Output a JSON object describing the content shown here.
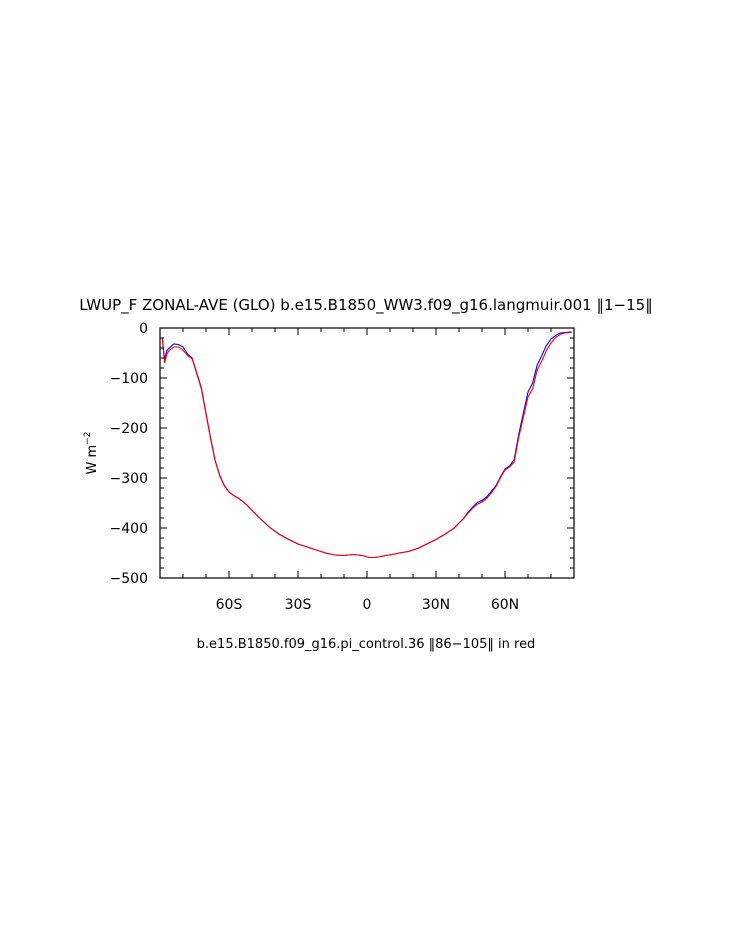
{
  "chart_data": {
    "type": "line",
    "title": "LWUP_F ZONAL-AVE (GLO) b.e15.B1850_WW3.f09_g16.langmuir.001 ‖1−15‖",
    "ylabel_base": "W m",
    "ylabel_exp": "−2",
    "xlabel": "",
    "subtitle": "b.e15.B1850.f09_g16.pi_control.36 ‖86−105‖ in red",
    "xlim": [
      -90,
      90
    ],
    "ylim": [
      -500,
      0
    ],
    "x_ticks": [
      {
        "value": -60,
        "label": "60S"
      },
      {
        "value": -30,
        "label": "30S"
      },
      {
        "value": 0,
        "label": "0"
      },
      {
        "value": 30,
        "label": "30N"
      },
      {
        "value": 60,
        "label": "60N"
      }
    ],
    "y_ticks": [
      {
        "value": 0,
        "label": "0"
      },
      {
        "value": -100,
        "label": "−100"
      },
      {
        "value": -200,
        "label": "−200"
      },
      {
        "value": -300,
        "label": "−300"
      },
      {
        "value": -400,
        "label": "−400"
      },
      {
        "value": -500,
        "label": "−500"
      }
    ],
    "series": [
      {
        "color": "#0000ff",
        "x": [
          -89,
          -88,
          -87,
          -86,
          -84,
          -82,
          -80,
          -78,
          -76,
          -74,
          -72,
          -70,
          -68,
          -66,
          -64,
          -62,
          -60,
          -58,
          -56,
          -54,
          -52,
          -50,
          -46,
          -42,
          -38,
          -34,
          -30,
          -26,
          -22,
          -18,
          -14,
          -10,
          -6,
          -2,
          1,
          3,
          5,
          8,
          11,
          14,
          18,
          22,
          26,
          30,
          34,
          38,
          40,
          42,
          44,
          46,
          48,
          50,
          52,
          54,
          56,
          58,
          60,
          62,
          64,
          66,
          68,
          70,
          72,
          74,
          76,
          78,
          80,
          82,
          84,
          86,
          88,
          89
        ],
        "y": [
          -20,
          -63,
          -45,
          -40,
          -32,
          -33,
          -38,
          -52,
          -60,
          -90,
          -120,
          -170,
          -220,
          -265,
          -295,
          -315,
          -328,
          -335,
          -340,
          -347,
          -355,
          -365,
          -383,
          -400,
          -413,
          -423,
          -432,
          -438,
          -444,
          -450,
          -454,
          -455,
          -453,
          -455,
          -459,
          -459,
          -458,
          -455,
          -453,
          -450,
          -447,
          -441,
          -432,
          -423,
          -412,
          -400,
          -390,
          -381,
          -368,
          -358,
          -349,
          -345,
          -338,
          -327,
          -316,
          -298,
          -282,
          -276,
          -263,
          -212,
          -170,
          -128,
          -110,
          -74,
          -55,
          -35,
          -22,
          -15,
          -10,
          -9,
          -8,
          -8
        ]
      },
      {
        "color": "#ff0000",
        "x": [
          -89,
          -88,
          -87,
          -86,
          -84,
          -82,
          -80,
          -78,
          -76,
          -74,
          -72,
          -70,
          -68,
          -66,
          -64,
          -62,
          -60,
          -58,
          -56,
          -54,
          -52,
          -50,
          -46,
          -42,
          -38,
          -34,
          -30,
          -26,
          -22,
          -18,
          -14,
          -10,
          -6,
          -2,
          1,
          3,
          5,
          8,
          11,
          14,
          18,
          22,
          26,
          30,
          34,
          38,
          40,
          42,
          44,
          46,
          48,
          50,
          52,
          54,
          56,
          58,
          60,
          62,
          64,
          66,
          68,
          70,
          72,
          74,
          76,
          78,
          80,
          82,
          84,
          86,
          88,
          89
        ],
        "y": [
          -22,
          -70,
          -52,
          -45,
          -38,
          -38,
          -44,
          -55,
          -62,
          -92,
          -122,
          -172,
          -222,
          -266,
          -296,
          -316,
          -328,
          -335,
          -340,
          -347,
          -355,
          -365,
          -383,
          -400,
          -413,
          -423,
          -432,
          -438,
          -444,
          -450,
          -454,
          -455,
          -453,
          -455,
          -459,
          -459,
          -458,
          -455,
          -453,
          -450,
          -447,
          -441,
          -432,
          -423,
          -412,
          -400,
          -390,
          -381,
          -370,
          -360,
          -352,
          -348,
          -341,
          -330,
          -318,
          -300,
          -284,
          -278,
          -268,
          -218,
          -178,
          -138,
          -122,
          -84,
          -66,
          -45,
          -30,
          -19,
          -13,
          -10,
          -9,
          -9
        ]
      }
    ]
  }
}
